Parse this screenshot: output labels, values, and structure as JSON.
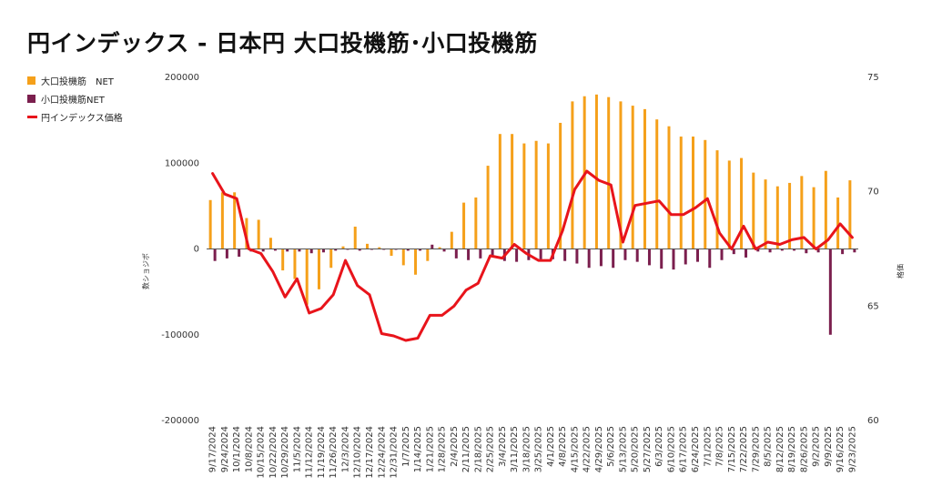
{
  "chart_data": {
    "type": "bar",
    "title": "円インデックス - 日本円 大口投機筋･小口投機筋",
    "ylabel": "数ショジポ",
    "y2label": "格価",
    "ylim": [
      -200000,
      200000
    ],
    "y2lim": [
      60,
      75
    ],
    "yticks": [
      "200000",
      "100000",
      "0",
      "-100000",
      "-200000"
    ],
    "y2ticks": [
      "75",
      "70",
      "65",
      "60"
    ],
    "grid": false,
    "legend_position": "top-left",
    "categories": [
      "9/17/2024",
      "9/24/2024",
      "10/1/2024",
      "10/8/2024",
      "10/15/2024",
      "10/22/2024",
      "10/29/2024",
      "11/5/2024",
      "11/12/2024",
      "11/19/2024",
      "11/26/2024",
      "12/3/2024",
      "12/10/2024",
      "12/17/2024",
      "12/24/2024",
      "12/31/2024",
      "1/7/2025",
      "1/14/2025",
      "1/21/2025",
      "1/28/2025",
      "2/4/2025",
      "2/11/2025",
      "2/18/2025",
      "2/25/2025",
      "3/4/2025",
      "3/11/2025",
      "3/18/2025",
      "3/25/2025",
      "4/1/2025",
      "4/8/2025",
      "4/15/2025",
      "4/22/2025",
      "4/29/2025",
      "5/6/2025",
      "5/13/2025",
      "5/20/2025",
      "5/27/2025",
      "6/3/2025",
      "6/10/2025",
      "6/17/2025",
      "6/24/2025",
      "7/1/2025",
      "7/8/2025",
      "7/15/2025",
      "7/22/2025",
      "7/29/2025",
      "8/5/2025",
      "8/12/2025",
      "8/19/2025",
      "8/26/2025",
      "9/2/2025",
      "9/9/2025",
      "9/16/2025",
      "9/23/2025"
    ],
    "series": [
      {
        "name": "大口投機筋　NET",
        "kind": "bar",
        "color": "#f5a01a",
        "axis": "left",
        "values": [
          57000,
          66000,
          66000,
          36000,
          34000,
          13000,
          -25000,
          -35000,
          -65000,
          -47000,
          -22000,
          3000,
          26000,
          6000,
          2000,
          -8000,
          -19000,
          -30000,
          -14000,
          2000,
          20000,
          54000,
          60000,
          97000,
          134000,
          134000,
          123000,
          126000,
          123000,
          147000,
          172000,
          178000,
          180000,
          177000,
          172000,
          167000,
          163000,
          151000,
          143000,
          131000,
          131000,
          127000,
          115000,
          103000,
          106000,
          89000,
          81000,
          73000,
          77000,
          85000,
          72000,
          91000,
          60000,
          80000
        ]
      },
      {
        "name": "小口投機筋NET",
        "kind": "bar",
        "color": "#7b1f4e",
        "axis": "left",
        "values": [
          -14000,
          -11000,
          -9000,
          -3000,
          -3000,
          -2000,
          -3000,
          -3000,
          -5000,
          -4000,
          -2000,
          -1000,
          -2000,
          -1000,
          -1000,
          -1000,
          -2000,
          -2000,
          5000,
          -3000,
          -11000,
          -13000,
          -11000,
          -8000,
          -14000,
          -15000,
          -13000,
          -12000,
          -12000,
          -14000,
          -17000,
          -22000,
          -20000,
          -22000,
          -13000,
          -15000,
          -19000,
          -23000,
          -24000,
          -18000,
          -15000,
          -22000,
          -13000,
          -6000,
          -10000,
          -3000,
          -4000,
          -2000,
          -2000,
          -5000,
          -4000,
          -100000,
          -6000,
          -4000
        ]
      },
      {
        "name": "円インデックス価格",
        "kind": "line",
        "color": "#e8141b",
        "axis": "right",
        "values": [
          70.8,
          69.9,
          69.7,
          67.5,
          67.3,
          66.5,
          65.4,
          66.2,
          64.7,
          64.9,
          65.5,
          67.0,
          65.9,
          65.5,
          63.8,
          63.7,
          63.5,
          63.6,
          64.6,
          64.6,
          65.0,
          65.7,
          66.0,
          67.2,
          67.1,
          67.7,
          67.3,
          67.0,
          67.0,
          68.3,
          70.1,
          70.9,
          70.5,
          70.3,
          67.8,
          69.4,
          69.5,
          69.6,
          69.0,
          69.0,
          69.3,
          69.7,
          68.2,
          67.5,
          68.5,
          67.5,
          67.8,
          67.7,
          67.9,
          68.0,
          67.5,
          67.9,
          68.6,
          68.0
        ]
      }
    ]
  }
}
